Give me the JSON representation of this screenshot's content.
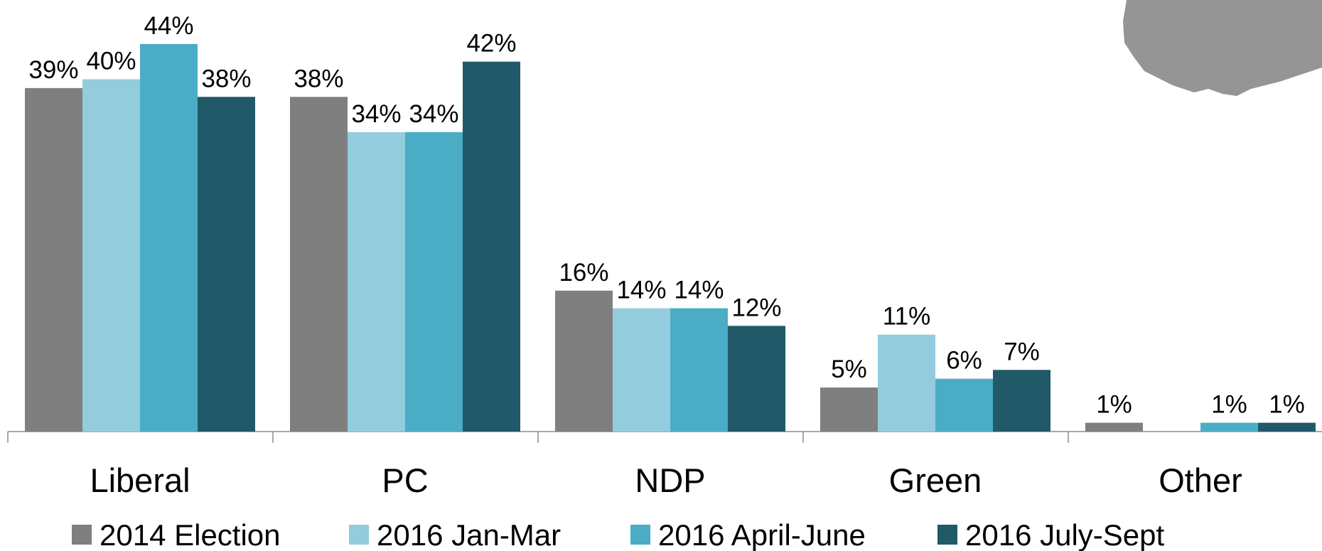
{
  "chart_data": {
    "type": "bar",
    "categories": [
      "Liberal",
      "PC",
      "NDP",
      "Green",
      "Other"
    ],
    "series": [
      {
        "name": "2014 Election",
        "color": "#7f7f7f",
        "values": [
          39,
          38,
          16,
          5,
          1
        ],
        "value_labels": [
          "39%",
          "38%",
          "16%",
          "5%",
          "1%"
        ]
      },
      {
        "name": "2016 Jan-Mar",
        "color": "#93cddd",
        "values": [
          40,
          34,
          14,
          11,
          null
        ],
        "value_labels": [
          "40%",
          "34%",
          "14%",
          "11%",
          null
        ]
      },
      {
        "name": "2016 April-June",
        "color": "#4bacc6",
        "values": [
          44,
          34,
          14,
          6,
          1
        ],
        "value_labels": [
          "44%",
          "34%",
          "14%",
          "6%",
          "1%"
        ]
      },
      {
        "name": "2016 July-Sept",
        "color": "#215968",
        "values": [
          38,
          42,
          12,
          7,
          1
        ],
        "value_labels": [
          "38%",
          "42%",
          "12%",
          "7%",
          "1%"
        ]
      }
    ],
    "ylim": [
      0,
      49
    ],
    "legend": "bottom"
  }
}
